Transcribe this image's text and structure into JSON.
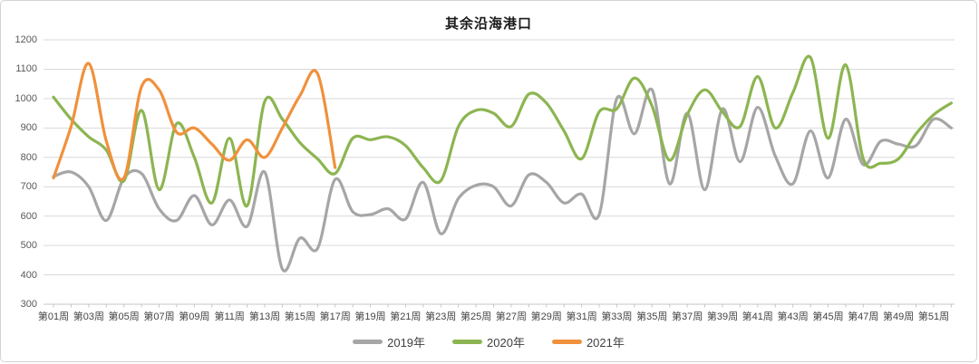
{
  "chart_data": {
    "type": "line",
    "title": "其余沿海港口",
    "smooth": true,
    "grid": "horizontal-only",
    "legend_position": "bottom-center",
    "ylim": [
      300,
      1200
    ],
    "y_tick_step": 100,
    "x_label_every": 2,
    "categories": [
      "第01周",
      "第02周",
      "第03周",
      "第04周",
      "第05周",
      "第06周",
      "第07周",
      "第08周",
      "第09周",
      "第10周",
      "第11周",
      "第12周",
      "第13周",
      "第14周",
      "第15周",
      "第16周",
      "第17周",
      "第18周",
      "第19周",
      "第20周",
      "第21周",
      "第22周",
      "第23周",
      "第24周",
      "第25周",
      "第26周",
      "第27周",
      "第28周",
      "第29周",
      "第30周",
      "第31周",
      "第32周",
      "第33周",
      "第34周",
      "第35周",
      "第36周",
      "第37周",
      "第38周",
      "第39周",
      "第40周",
      "第41周",
      "第42周",
      "第43周",
      "第44周",
      "第45周",
      "第46周",
      "第47周",
      "第48周",
      "第49周",
      "第50周",
      "第51周",
      "第52周"
    ],
    "series": [
      {
        "name": "2019年",
        "color": "#a6a6a6",
        "values": [
          735,
          750,
          700,
          585,
          730,
          745,
          625,
          585,
          670,
          570,
          655,
          565,
          750,
          420,
          525,
          490,
          725,
          615,
          605,
          625,
          590,
          715,
          540,
          660,
          705,
          700,
          635,
          740,
          715,
          645,
          675,
          605,
          1000,
          880,
          1030,
          710,
          950,
          690,
          965,
          785,
          970,
          805,
          710,
          890,
          730,
          930,
          775,
          855,
          845,
          840,
          930,
          900
        ]
      },
      {
        "name": "2020年",
        "color": "#8cb551",
        "values": [
          1005,
          930,
          870,
          825,
          720,
          960,
          690,
          915,
          800,
          645,
          865,
          635,
          990,
          930,
          850,
          795,
          745,
          865,
          860,
          870,
          840,
          765,
          720,
          905,
          960,
          950,
          905,
          1015,
          985,
          890,
          795,
          955,
          965,
          1070,
          975,
          790,
          945,
          1030,
          955,
          905,
          1075,
          900,
          1020,
          1140,
          865,
          1115,
          795,
          780,
          795,
          880,
          945,
          985
        ]
      },
      {
        "name": "2021年",
        "color": "#f0913c",
        "values": [
          730,
          905,
          1120,
          855,
          730,
          1040,
          1030,
          885,
          900,
          845,
          790,
          860,
          800,
          900,
          1010,
          1085,
          765
        ]
      }
    ]
  }
}
